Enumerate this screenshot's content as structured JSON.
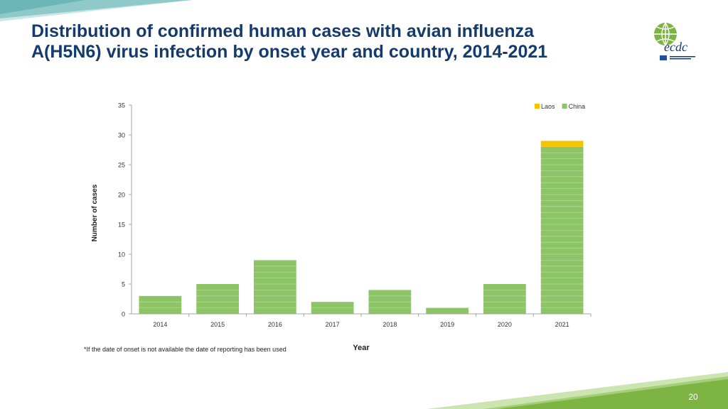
{
  "slide": {
    "title_line1": "Distribution of confirmed human cases with avian influenza",
    "title_line2": "A(H5N6) virus infection by onset year and country, 2014-2021",
    "footnote": "*If the date of onset is not available the date of reporting has been used",
    "page_number": "20",
    "logo_text": "ecdc",
    "colors": {
      "title": "#143b6b",
      "accent_green": "#7db443",
      "accent_teal": "#5aa8b0"
    }
  },
  "chart_data": {
    "type": "bar",
    "stacked": true,
    "categories": [
      "2014",
      "2015",
      "2016",
      "2017",
      "2018",
      "2019",
      "2020",
      "2021"
    ],
    "series": [
      {
        "name": "China",
        "color": "#8cc466",
        "values": [
          3,
          5,
          9,
          2,
          4,
          1,
          5,
          28
        ]
      },
      {
        "name": "Laos",
        "color": "#f5c400",
        "values": [
          0,
          0,
          0,
          0,
          0,
          0,
          0,
          1
        ]
      }
    ],
    "xlabel": "Year",
    "ylabel": "Number of cases",
    "ylim": [
      0,
      35
    ],
    "yticks": [
      0,
      5,
      10,
      15,
      20,
      25,
      30,
      35
    ],
    "legend_position": "top-right",
    "legend_order": [
      "Laos",
      "China"
    ],
    "grid": false
  }
}
